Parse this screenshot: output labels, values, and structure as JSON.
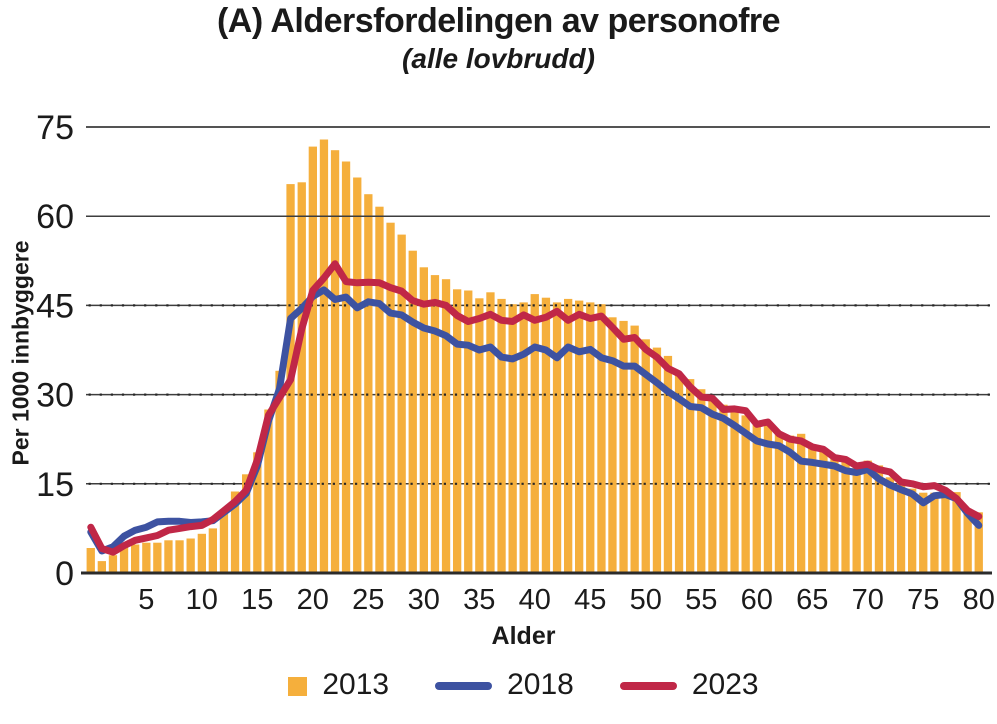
{
  "title": "(A) Aldersfordelingen av personofre",
  "subtitle": "(alle lovbrudd)",
  "chart_data": {
    "type": "bar+line",
    "title": "(A) Aldersfordelingen av personofre",
    "subtitle": "(alle lovbrudd)",
    "x_label": "Alder",
    "y_label": "Per 1000 innbyggere",
    "x_unit": "age (years)",
    "x_range": [
      0,
      80
    ],
    "ylim": [
      0,
      78
    ],
    "y_ticks": [
      0,
      15,
      30,
      45,
      60,
      75
    ],
    "x_ticks": [
      5,
      10,
      15,
      20,
      25,
      30,
      35,
      40,
      45,
      50,
      55,
      60,
      65,
      70,
      75,
      80
    ],
    "grid": "horizontal",
    "legend_position": "bottom",
    "series": [
      {
        "name": "2013",
        "type": "bar",
        "color": "#F5AF3C",
        "values": [
          4.2,
          2,
          3,
          4.4,
          4.8,
          5.1,
          5.1,
          5.5,
          5.5,
          5.8,
          6.6,
          7.5,
          10,
          13.7,
          16.6,
          20.3,
          27.5,
          34,
          65.4,
          65.7,
          71.7,
          72.9,
          71.1,
          69.2,
          66.5,
          63.7,
          61.6,
          58.9,
          56.9,
          54.2,
          51.4,
          50.1,
          49.4,
          47.7,
          47.5,
          46.2,
          47.2,
          46.1,
          45.2,
          45.5,
          46.9,
          46.3,
          45.5,
          46.1,
          45.8,
          45.5,
          45.2,
          43,
          42.4,
          41.6,
          39.3,
          37.9,
          36.5,
          33.4,
          32.6,
          30.9,
          29.2,
          28.3,
          27.1,
          26.5,
          25.2,
          25.1,
          23.5,
          23.1,
          23.4,
          21,
          20.9,
          19.2,
          19,
          17.7,
          18.9,
          18.1,
          16.1,
          15.6,
          14.2,
          13.5,
          13.5,
          13.7,
          13.6,
          10.8,
          10.2
        ]
      },
      {
        "name": "2018",
        "type": "line",
        "color": "#3D52A1",
        "values": [
          6.9,
          3.7,
          4.4,
          6.2,
          7.2,
          7.7,
          8.6,
          8.7,
          8.7,
          8.5,
          8.6,
          8.8,
          10.2,
          11.6,
          13.4,
          18,
          25.5,
          31,
          42.8,
          44.5,
          46.5,
          47.6,
          46,
          46.4,
          44.6,
          45.6,
          45.3,
          43.7,
          43.4,
          42.2,
          41.2,
          40.7,
          39.9,
          38.5,
          38.3,
          37.5,
          38,
          36.3,
          36,
          36.8,
          38,
          37.5,
          36.2,
          38,
          37.2,
          37.6,
          36.2,
          35.7,
          34.8,
          34.8,
          33.4,
          32,
          30.5,
          29.3,
          28,
          27.8,
          26.7,
          26,
          24.8,
          23.5,
          22.2,
          21.7,
          21.4,
          20.3,
          18.8,
          18.6,
          18.3,
          18,
          17.2,
          16.9,
          17.4,
          15.8,
          14.8,
          14,
          13.3,
          11.8,
          13,
          13.2,
          12.5,
          10,
          8
        ]
      },
      {
        "name": "2023",
        "type": "line",
        "color": "#C02747",
        "values": [
          7.7,
          4.1,
          3.5,
          4.6,
          5.5,
          5.9,
          6.3,
          7.2,
          7.5,
          7.8,
          8,
          9,
          10.5,
          12,
          13.9,
          19,
          26.5,
          29.5,
          32.5,
          41,
          47.5,
          49.6,
          52,
          49,
          48.8,
          48.9,
          48.8,
          48,
          47.4,
          45.8,
          45.2,
          45.5,
          45,
          43.3,
          42.3,
          42.8,
          43.5,
          42.5,
          42.3,
          43.4,
          42.5,
          43,
          44,
          42.5,
          43.5,
          42.8,
          43.2,
          41.3,
          39.3,
          39.6,
          37.6,
          36.3,
          34.4,
          33.5,
          31.3,
          29.6,
          29.4,
          27.5,
          27.6,
          27.3,
          25,
          25.4,
          23.4,
          22.5,
          22.2,
          21.2,
          20.8,
          19.4,
          19.1,
          18,
          18.3,
          17.4,
          17,
          15.3,
          15,
          14.5,
          14.7,
          13.9,
          12.5,
          10.5,
          9.5
        ]
      }
    ],
    "colors": {
      "bars": "#F5AF3C",
      "line_2018": "#3D52A1",
      "line_2023": "#C02747",
      "gridline": "#3d3d3d",
      "axis": "#2b2b2b",
      "text": "#1a1a1a"
    }
  }
}
